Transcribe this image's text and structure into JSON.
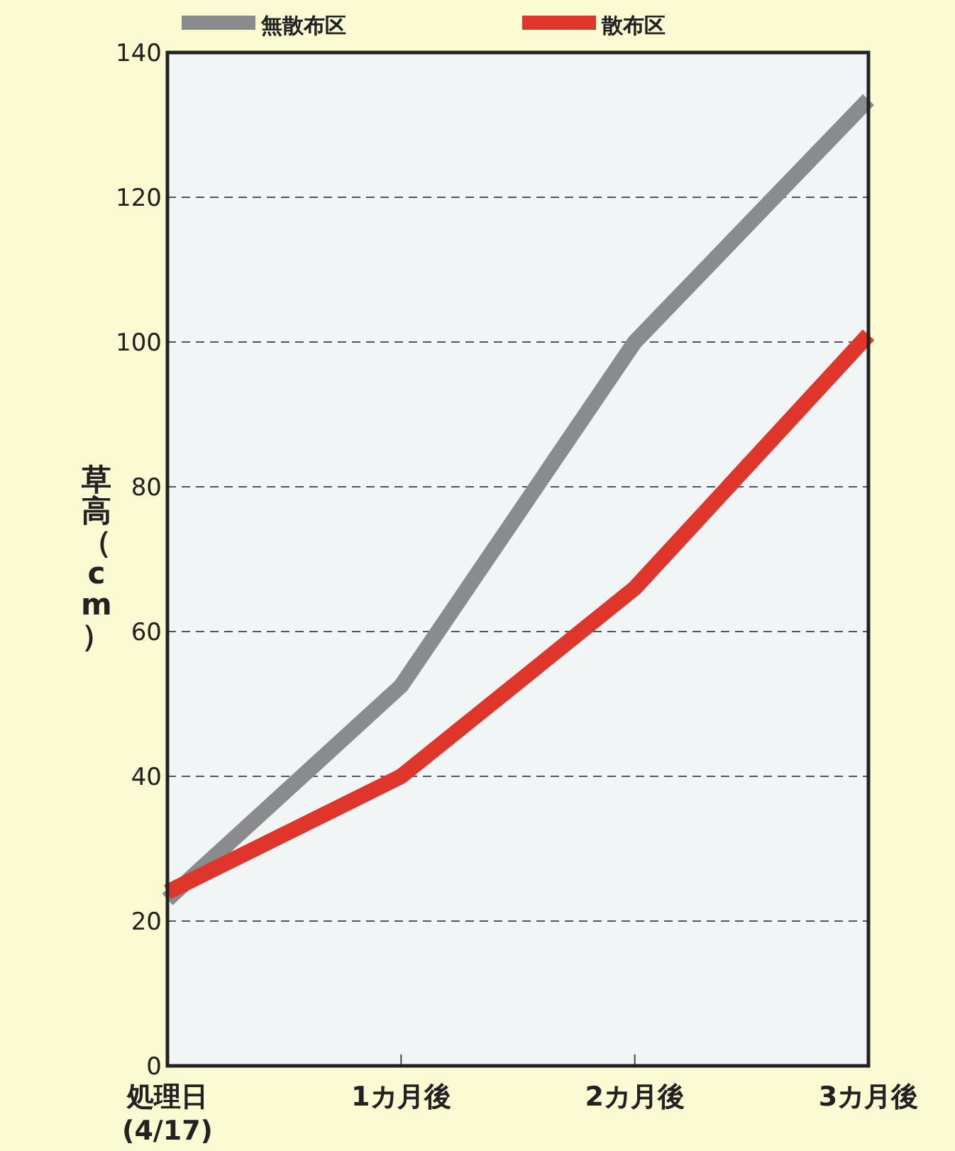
{
  "chart_data": {
    "type": "line",
    "ylabel": "草高（cm）",
    "categories": [
      "処理日\n(4/17)",
      "1カ月後",
      "2カ月後",
      "3カ月後"
    ],
    "series": [
      {
        "name": "無散布区",
        "color": "#8a8b8c",
        "values": [
          23,
          52.5,
          100,
          133.5
        ]
      },
      {
        "name": "散布区",
        "color": "#e0352b",
        "values": [
          24,
          40,
          66,
          101
        ]
      }
    ],
    "ylim": [
      0,
      140
    ],
    "yticks": [
      0,
      20,
      40,
      60,
      80,
      100,
      120,
      140
    ],
    "grid": "y",
    "legend": "top",
    "marker": "none",
    "line_style": "solid"
  }
}
